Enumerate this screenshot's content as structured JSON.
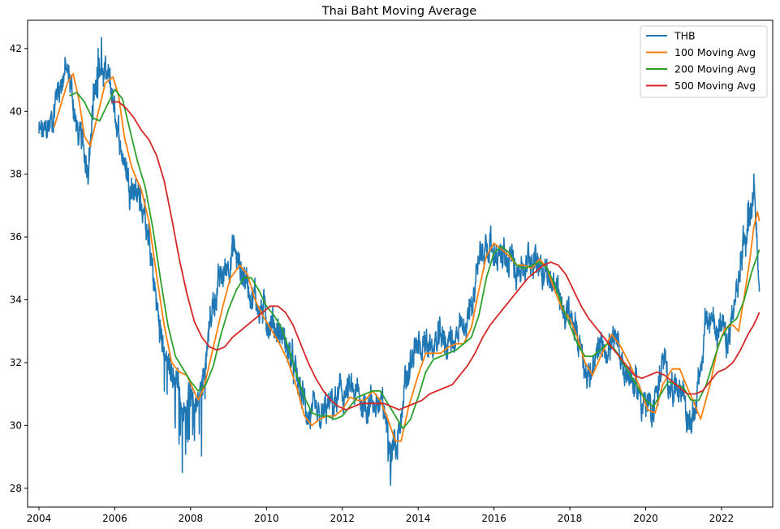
{
  "chart_data": {
    "type": "line",
    "title": "Thai Baht Moving Average",
    "xlabel": "",
    "ylabel": "",
    "xlim": [
      2003.7,
      2023.35
    ],
    "ylim": [
      27.4,
      42.9
    ],
    "grid": false,
    "legend_placement": "top-right",
    "x_ticks": [
      2004,
      2006,
      2008,
      2010,
      2012,
      2014,
      2016,
      2018,
      2020,
      2022
    ],
    "x_tick_labels": [
      "2004",
      "2006",
      "2008",
      "2010",
      "2012",
      "2014",
      "2016",
      "2018",
      "2020",
      "2022"
    ],
    "y_ticks": [
      28,
      30,
      32,
      34,
      36,
      38,
      40,
      42
    ],
    "y_tick_labels": [
      "28",
      "30",
      "32",
      "34",
      "36",
      "38",
      "40",
      "42"
    ],
    "series": [
      {
        "name": "THB",
        "color": "#1f77b4",
        "noise": true,
        "x": [
          2004.0,
          2004.15,
          2004.35,
          2004.5,
          2004.7,
          2004.85,
          2005.0,
          2005.15,
          2005.3,
          2005.45,
          2005.55,
          2005.7,
          2005.85,
          2006.0,
          2006.15,
          2006.3,
          2006.5,
          2006.7,
          2006.9,
          2007.05,
          2007.2,
          2007.3,
          2007.4,
          2007.5,
          2007.65,
          2007.75,
          2007.85,
          2007.95,
          2008.05,
          2008.15,
          2008.25,
          2008.4,
          2008.55,
          2008.7,
          2008.85,
          2009.0,
          2009.15,
          2009.3,
          2009.45,
          2009.6,
          2009.8,
          2010.0,
          2010.2,
          2010.4,
          2010.6,
          2010.8,
          2011.0,
          2011.2,
          2011.4,
          2011.6,
          2011.8,
          2012.0,
          2012.2,
          2012.4,
          2012.6,
          2012.8,
          2013.0,
          2013.15,
          2013.3,
          2013.45,
          2013.6,
          2013.8,
          2014.0,
          2014.2,
          2014.4,
          2014.6,
          2014.8,
          2015.0,
          2015.2,
          2015.4,
          2015.6,
          2015.8,
          2016.0,
          2016.2,
          2016.4,
          2016.6,
          2016.8,
          2017.0,
          2017.2,
          2017.4,
          2017.6,
          2017.8,
          2018.0,
          2018.15,
          2018.3,
          2018.45,
          2018.6,
          2018.8,
          2019.0,
          2019.2,
          2019.4,
          2019.6,
          2019.8,
          2020.0,
          2020.15,
          2020.3,
          2020.45,
          2020.6,
          2020.8,
          2021.0,
          2021.1,
          2021.25,
          2021.4,
          2021.6,
          2021.8,
          2022.0,
          2022.15,
          2022.3,
          2022.45,
          2022.6,
          2022.75,
          2022.85,
          2022.95,
          2023.0
        ],
        "values": [
          39.3,
          39.2,
          39.8,
          40.8,
          41.3,
          40.8,
          39.4,
          38.8,
          38.4,
          40.2,
          41.5,
          41.1,
          40.9,
          40.0,
          39.0,
          38.1,
          37.6,
          37.2,
          35.8,
          34.3,
          33.0,
          32.2,
          31.8,
          31.9,
          31.4,
          30.8,
          30.5,
          31.3,
          30.7,
          30.3,
          31.2,
          32.5,
          33.6,
          34.4,
          34.7,
          35.3,
          35.6,
          35.0,
          34.7,
          34.3,
          33.8,
          33.5,
          33.2,
          32.9,
          32.3,
          31.4,
          30.7,
          30.2,
          30.0,
          30.5,
          30.7,
          31.0,
          31.0,
          30.9,
          30.7,
          30.8,
          30.6,
          30.2,
          29.3,
          29.6,
          30.8,
          31.9,
          32.5,
          32.6,
          32.4,
          32.8,
          32.7,
          32.8,
          32.9,
          33.8,
          35.3,
          35.9,
          35.6,
          35.3,
          35.1,
          35.2,
          35.0,
          35.4,
          35.3,
          34.9,
          34.5,
          33.8,
          33.3,
          33.0,
          32.5,
          31.8,
          31.5,
          32.4,
          32.6,
          32.5,
          32.0,
          31.6,
          31.1,
          30.7,
          30.3,
          31.2,
          32.0,
          31.4,
          31.3,
          31.2,
          30.2,
          30.0,
          31.6,
          33.2,
          33.4,
          33.0,
          32.4,
          33.5,
          34.5,
          36.2,
          36.8,
          37.8,
          35.4,
          34.6
        ],
        "draw_to": 2022.98
      },
      {
        "name": "100 Moving Avg",
        "color": "#ff7f0e",
        "x": [
          2004.4,
          2004.6,
          2004.75,
          2004.9,
          2005.05,
          2005.2,
          2005.35,
          2005.55,
          2005.75,
          2005.95,
          2006.1,
          2006.25,
          2006.45,
          2006.7,
          2006.9,
          2007.1,
          2007.3,
          2007.5,
          2007.7,
          2007.9,
          2008.05,
          2008.2,
          2008.35,
          2008.6,
          2008.85,
          2009.05,
          2009.3,
          2009.5,
          2009.7,
          2009.9,
          2010.1,
          2010.3,
          2010.55,
          2010.8,
          2011.0,
          2011.2,
          2011.4,
          2011.6,
          2011.8,
          2012.0,
          2012.2,
          2012.4,
          2012.6,
          2012.8,
          2013.0,
          2013.2,
          2013.4,
          2013.55,
          2013.75,
          2014.0,
          2014.2,
          2014.4,
          2014.6,
          2014.8,
          2015.0,
          2015.2,
          2015.4,
          2015.6,
          2015.8,
          2016.0,
          2016.2,
          2016.4,
          2016.6,
          2016.8,
          2017.0,
          2017.2,
          2017.4,
          2017.6,
          2017.8,
          2018.0,
          2018.2,
          2018.4,
          2018.6,
          2018.85,
          2019.1,
          2019.35,
          2019.6,
          2019.85,
          2020.05,
          2020.25,
          2020.45,
          2020.7,
          2020.9,
          2021.1,
          2021.25,
          2021.45,
          2021.7,
          2021.9,
          2022.1,
          2022.3,
          2022.45,
          2022.6,
          2022.75,
          2022.85,
          2022.95,
          2023.0
        ],
        "values": [
          39.5,
          40.3,
          40.9,
          41.2,
          40.4,
          39.2,
          38.9,
          39.9,
          40.9,
          41.1,
          40.5,
          39.2,
          38.2,
          37.5,
          36.5,
          34.8,
          33.2,
          32.0,
          31.7,
          31.6,
          31.2,
          30.8,
          31.2,
          32.5,
          33.8,
          34.7,
          35.1,
          34.8,
          34.0,
          33.5,
          33.1,
          32.7,
          32.1,
          31.2,
          30.3,
          30.0,
          30.2,
          30.3,
          30.3,
          30.5,
          30.9,
          30.8,
          30.8,
          31.1,
          30.8,
          30.2,
          29.5,
          29.5,
          30.6,
          31.6,
          32.3,
          32.3,
          32.3,
          32.5,
          32.6,
          32.6,
          33.1,
          34.3,
          35.4,
          35.8,
          35.6,
          35.4,
          35.1,
          35.1,
          35.0,
          35.3,
          35.0,
          34.3,
          33.7,
          33.4,
          32.8,
          32.0,
          31.6,
          32.3,
          32.9,
          32.5,
          31.9,
          31.2,
          30.5,
          30.4,
          31.3,
          31.8,
          31.8,
          31.2,
          30.8,
          30.2,
          31.3,
          32.5,
          33.1,
          33.2,
          33.0,
          34.1,
          35.3,
          36.3,
          36.8,
          36.5
        ],
        "draw_to": 2022.97
      },
      {
        "name": "200 Moving Avg",
        "color": "#2ca02c",
        "x": [
          2004.8,
          2005.0,
          2005.2,
          2005.4,
          2005.6,
          2005.8,
          2006.0,
          2006.2,
          2006.4,
          2006.6,
          2006.8,
          2007.0,
          2007.2,
          2007.4,
          2007.6,
          2007.8,
          2008.0,
          2008.2,
          2008.4,
          2008.6,
          2008.8,
          2009.0,
          2009.2,
          2009.4,
          2009.6,
          2009.8,
          2010.0,
          2010.2,
          2010.4,
          2010.6,
          2010.8,
          2011.0,
          2011.2,
          2011.4,
          2011.6,
          2011.8,
          2012.0,
          2012.2,
          2012.4,
          2012.6,
          2012.8,
          2013.0,
          2013.2,
          2013.4,
          2013.6,
          2013.8,
          2014.0,
          2014.2,
          2014.4,
          2014.6,
          2014.8,
          2015.0,
          2015.2,
          2015.4,
          2015.6,
          2015.8,
          2016.0,
          2016.2,
          2016.4,
          2016.6,
          2016.8,
          2017.0,
          2017.2,
          2017.4,
          2017.6,
          2017.8,
          2018.0,
          2018.2,
          2018.4,
          2018.6,
          2018.8,
          2019.0,
          2019.2,
          2019.4,
          2019.6,
          2019.8,
          2020.0,
          2020.2,
          2020.4,
          2020.6,
          2020.8,
          2021.0,
          2021.2,
          2021.4,
          2021.6,
          2021.8,
          2022.0,
          2022.2,
          2022.4,
          2022.6,
          2022.8,
          2023.0
        ],
        "values": [
          40.5,
          40.6,
          40.3,
          39.8,
          39.7,
          40.2,
          40.7,
          40.4,
          39.4,
          38.4,
          37.6,
          36.3,
          34.7,
          33.2,
          32.2,
          31.8,
          31.4,
          31.1,
          31.3,
          31.9,
          32.9,
          33.7,
          34.3,
          34.7,
          34.7,
          34.3,
          33.8,
          33.5,
          33.1,
          32.4,
          31.6,
          30.9,
          30.4,
          30.3,
          30.3,
          30.2,
          30.3,
          30.6,
          30.9,
          31.0,
          31.1,
          31.1,
          30.7,
          30.3,
          29.9,
          30.2,
          30.9,
          31.7,
          32.1,
          32.2,
          32.3,
          32.4,
          32.6,
          32.8,
          33.5,
          34.7,
          35.5,
          35.7,
          35.5,
          35.1,
          35.0,
          35.1,
          35.2,
          35.0,
          34.5,
          33.8,
          33.2,
          32.6,
          32.2,
          32.2,
          32.4,
          32.6,
          32.4,
          32.0,
          31.6,
          31.2,
          30.8,
          30.6,
          31.0,
          31.4,
          31.3,
          31.2,
          30.8,
          30.8,
          31.3,
          32.1,
          32.8,
          33.2,
          33.4,
          34.0,
          34.9,
          35.6
        ],
        "draw_to": 2022.98
      },
      {
        "name": "500 Moving Avg",
        "color": "#d62728",
        "x": [
          2005.9,
          2006.1,
          2006.3,
          2006.5,
          2006.7,
          2006.9,
          2007.1,
          2007.3,
          2007.5,
          2007.7,
          2007.9,
          2008.1,
          2008.3,
          2008.5,
          2008.7,
          2008.9,
          2009.1,
          2009.3,
          2009.5,
          2009.7,
          2009.9,
          2010.1,
          2010.3,
          2010.5,
          2010.7,
          2010.9,
          2011.1,
          2011.3,
          2011.5,
          2011.7,
          2011.9,
          2012.1,
          2012.3,
          2012.5,
          2012.7,
          2012.9,
          2013.1,
          2013.3,
          2013.5,
          2013.7,
          2013.9,
          2014.1,
          2014.3,
          2014.5,
          2014.7,
          2014.9,
          2015.1,
          2015.3,
          2015.5,
          2015.7,
          2015.9,
          2016.1,
          2016.3,
          2016.5,
          2016.7,
          2016.9,
          2017.1,
          2017.3,
          2017.5,
          2017.7,
          2017.9,
          2018.1,
          2018.3,
          2018.5,
          2018.7,
          2018.9,
          2019.1,
          2019.3,
          2019.5,
          2019.7,
          2019.9,
          2020.1,
          2020.3,
          2020.5,
          2020.7,
          2020.9,
          2021.1,
          2021.3,
          2021.5,
          2021.7,
          2021.9,
          2022.1,
          2022.3,
          2022.5,
          2022.7,
          2022.85,
          2023.0
        ],
        "values": [
          40.3,
          40.3,
          40.1,
          39.8,
          39.4,
          39.1,
          38.6,
          37.8,
          36.6,
          35.3,
          34.2,
          33.3,
          32.8,
          32.5,
          32.4,
          32.5,
          32.8,
          33.0,
          33.2,
          33.4,
          33.6,
          33.8,
          33.8,
          33.6,
          33.2,
          32.6,
          32.0,
          31.5,
          31.1,
          30.8,
          30.6,
          30.5,
          30.6,
          30.7,
          30.7,
          30.7,
          30.7,
          30.6,
          30.5,
          30.6,
          30.7,
          30.8,
          31.0,
          31.1,
          31.2,
          31.3,
          31.6,
          31.9,
          32.3,
          32.8,
          33.2,
          33.5,
          33.8,
          34.1,
          34.4,
          34.7,
          34.9,
          35.1,
          35.2,
          35.1,
          34.8,
          34.3,
          33.8,
          33.4,
          33.1,
          32.8,
          32.5,
          32.2,
          31.9,
          31.6,
          31.5,
          31.6,
          31.7,
          31.6,
          31.4,
          31.2,
          31.0,
          31.0,
          31.1,
          31.4,
          31.7,
          31.8,
          32.0,
          32.4,
          32.9,
          33.2,
          33.6
        ],
        "draw_to": 2022.98
      }
    ]
  }
}
